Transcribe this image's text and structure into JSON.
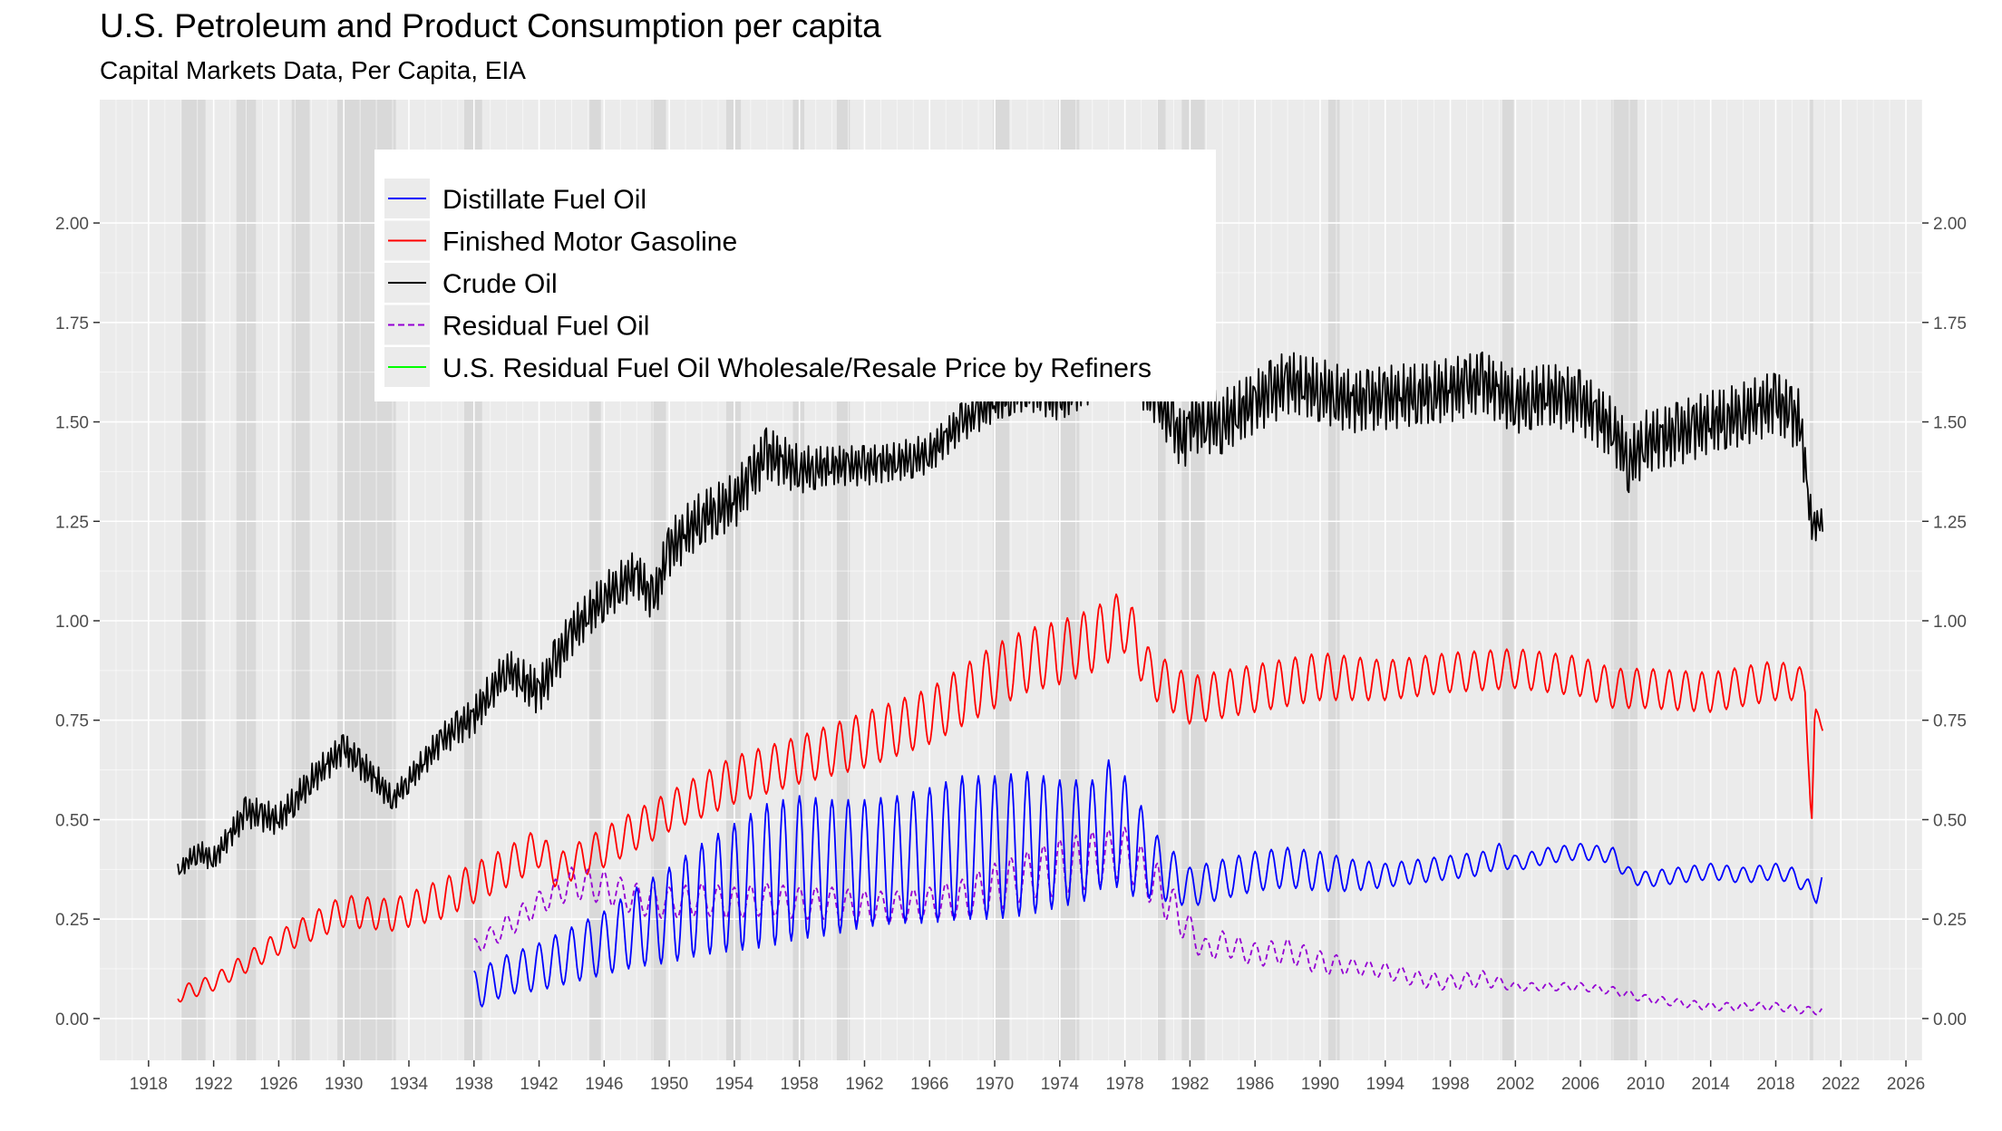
{
  "title": "U.S. Petroleum and Product Consumption per capita",
  "subtitle": "Capital Markets Data, Per Capita, EIA",
  "chart_data": {
    "type": "line",
    "title": "U.S. Petroleum and Product Consumption per capita",
    "subtitle": "Capital Markets Data, Per Capita, EIA",
    "xlabel": "",
    "ylabel": "",
    "xlim": [
      1915.0,
      2027.0
    ],
    "ylim": [
      -0.105,
      2.31
    ],
    "x_ticks": [
      1918,
      1922,
      1926,
      1930,
      1934,
      1938,
      1942,
      1946,
      1950,
      1954,
      1958,
      1962,
      1966,
      1970,
      1974,
      1978,
      1982,
      1986,
      1990,
      1994,
      1998,
      2002,
      2006,
      2010,
      2014,
      2018,
      2022,
      2026
    ],
    "y_ticks": [
      0.0,
      0.25,
      0.5,
      0.75,
      1.0,
      1.25,
      1.5,
      1.75,
      2.0
    ],
    "y_tick_labels": [
      "0.00",
      "0.25",
      "0.50",
      "0.75",
      "1.00",
      "1.25",
      "1.50",
      "1.75",
      "2.00"
    ],
    "y_axis_right": true,
    "grid": true,
    "legend_position": "top-left",
    "recessions": [
      [
        1920.0,
        1921.5
      ],
      [
        1923.4,
        1924.6
      ],
      [
        1926.8,
        1927.9
      ],
      [
        1929.6,
        1933.2
      ],
      [
        1937.4,
        1938.5
      ],
      [
        1945.1,
        1945.8
      ],
      [
        1948.9,
        1949.8
      ],
      [
        1953.5,
        1954.4
      ],
      [
        1957.6,
        1958.3
      ],
      [
        1960.3,
        1961.1
      ],
      [
        1969.9,
        1970.9
      ],
      [
        1973.9,
        1975.2
      ],
      [
        1980.0,
        1980.5
      ],
      [
        1981.5,
        1982.9
      ],
      [
        1990.5,
        1991.2
      ],
      [
        2001.2,
        2001.9
      ],
      [
        2007.9,
        2009.5
      ],
      [
        2020.1,
        2020.3
      ]
    ],
    "series": [
      {
        "name": "Distillate Fuel Oil",
        "color": "#0000ff",
        "dashed": false,
        "x": [
          1938,
          1940,
          1942,
          1944,
          1946,
          1948,
          1950,
          1952,
          1954,
          1956,
          1958,
          1960,
          1962,
          1964,
          1966,
          1968,
          1970,
          1972,
          1974,
          1976,
          1977,
          1978,
          1980,
          1982,
          1984,
          1986,
          1988,
          1990,
          1992,
          1994,
          1996,
          1998,
          2000,
          2001,
          2002,
          2004,
          2006,
          2008,
          2009,
          2010,
          2012,
          2014,
          2016,
          2018,
          2019,
          2020,
          2020.5,
          2020.9
        ],
        "y": [
          0.07,
          0.11,
          0.13,
          0.16,
          0.19,
          0.23,
          0.26,
          0.3,
          0.33,
          0.36,
          0.38,
          0.38,
          0.39,
          0.4,
          0.41,
          0.43,
          0.43,
          0.44,
          0.44,
          0.45,
          0.5,
          0.46,
          0.38,
          0.33,
          0.35,
          0.37,
          0.38,
          0.37,
          0.36,
          0.36,
          0.37,
          0.38,
          0.39,
          0.41,
          0.39,
          0.41,
          0.42,
          0.41,
          0.36,
          0.35,
          0.36,
          0.37,
          0.36,
          0.37,
          0.36,
          0.33,
          0.3,
          0.36
        ],
        "amplitude": [
          0.05,
          0.05,
          0.06,
          0.07,
          0.08,
          0.1,
          0.12,
          0.14,
          0.16,
          0.18,
          0.18,
          0.17,
          0.16,
          0.16,
          0.17,
          0.18,
          0.18,
          0.18,
          0.16,
          0.15,
          0.15,
          0.15,
          0.08,
          0.05,
          0.05,
          0.05,
          0.05,
          0.05,
          0.04,
          0.03,
          0.03,
          0.03,
          0.03,
          0.03,
          0.02,
          0.02,
          0.02,
          0.02,
          0.02,
          0.02,
          0.02,
          0.02,
          0.02,
          0.02,
          0.02,
          0.02,
          0.01,
          0.01
        ]
      },
      {
        "name": "Finished Motor Gasoline",
        "color": "#ff0000",
        "dashed": false,
        "x": [
          1919.8,
          1922,
          1926,
          1930,
          1933,
          1936,
          1940,
          1942,
          1943,
          1946,
          1950,
          1954,
          1958,
          1962,
          1966,
          1970,
          1972,
          1974,
          1976,
          1978,
          1979.5,
          1982,
          1986,
          1990,
          1994,
          1998,
          2002,
          2006,
          2008,
          2010,
          2014,
          2018,
          2019.8,
          2020.2,
          2020.4,
          2020.9
        ],
        "y": [
          0.06,
          0.09,
          0.19,
          0.27,
          0.26,
          0.3,
          0.38,
          0.43,
          0.37,
          0.43,
          0.52,
          0.6,
          0.65,
          0.7,
          0.76,
          0.86,
          0.9,
          0.92,
          0.95,
          1.0,
          0.87,
          0.8,
          0.83,
          0.86,
          0.85,
          0.87,
          0.88,
          0.86,
          0.83,
          0.83,
          0.82,
          0.85,
          0.84,
          0.48,
          0.76,
          0.74
        ],
        "amplitude": [
          0.02,
          0.02,
          0.03,
          0.04,
          0.04,
          0.05,
          0.05,
          0.05,
          0.04,
          0.05,
          0.05,
          0.06,
          0.06,
          0.07,
          0.07,
          0.08,
          0.08,
          0.08,
          0.08,
          0.08,
          0.06,
          0.06,
          0.06,
          0.06,
          0.05,
          0.05,
          0.05,
          0.05,
          0.05,
          0.05,
          0.05,
          0.05,
          0.04,
          0.0,
          0.02,
          0.02
        ]
      },
      {
        "name": "Crude Oil",
        "color": "#000000",
        "dashed": false,
        "x": [
          1919.8,
          1921,
          1922,
          1924,
          1926,
          1928,
          1930,
          1932,
          1933,
          1936,
          1938,
          1940,
          1942,
          1944,
          1946,
          1948,
          1949,
          1950,
          1952,
          1954,
          1956,
          1958,
          1960,
          1962,
          1964,
          1966,
          1968,
          1970,
          1972,
          1974,
          1976,
          1978,
          1980,
          1981.6,
          1982,
          1984,
          1986,
          1988,
          1990,
          1992,
          1994,
          1996,
          1998,
          2000,
          2002,
          2004,
          2006,
          2008,
          2009,
          2010,
          2012,
          2014,
          2016,
          2018,
          2019.5,
          2020.2,
          2020.9
        ],
        "y": [
          0.37,
          0.42,
          0.4,
          0.52,
          0.5,
          0.6,
          0.68,
          0.6,
          0.55,
          0.7,
          0.76,
          0.88,
          0.82,
          0.97,
          1.06,
          1.12,
          1.05,
          1.18,
          1.26,
          1.3,
          1.42,
          1.38,
          1.39,
          1.39,
          1.4,
          1.42,
          1.5,
          1.55,
          1.58,
          1.55,
          1.6,
          1.63,
          1.55,
          1.45,
          1.5,
          1.5,
          1.55,
          1.6,
          1.58,
          1.55,
          1.56,
          1.57,
          1.58,
          1.6,
          1.55,
          1.57,
          1.55,
          1.48,
          1.4,
          1.45,
          1.47,
          1.5,
          1.52,
          1.55,
          1.5,
          1.24,
          1.25
        ],
        "amplitude": [
          0.02,
          0.03,
          0.03,
          0.04,
          0.04,
          0.04,
          0.04,
          0.04,
          0.03,
          0.04,
          0.05,
          0.05,
          0.06,
          0.06,
          0.06,
          0.06,
          0.06,
          0.07,
          0.07,
          0.07,
          0.07,
          0.06,
          0.05,
          0.05,
          0.05,
          0.05,
          0.05,
          0.05,
          0.05,
          0.05,
          0.05,
          0.05,
          0.06,
          0.08,
          0.08,
          0.08,
          0.08,
          0.08,
          0.08,
          0.08,
          0.08,
          0.08,
          0.08,
          0.08,
          0.08,
          0.08,
          0.08,
          0.08,
          0.08,
          0.08,
          0.08,
          0.08,
          0.08,
          0.08,
          0.08,
          0.05,
          0.03
        ]
      },
      {
        "name": "Residual Fuel Oil",
        "color": "#9400d3",
        "dashed": true,
        "x": [
          1938,
          1940,
          1942,
          1944,
          1946,
          1948,
          1950,
          1952,
          1954,
          1956,
          1958,
          1960,
          1962,
          1964,
          1966,
          1968,
          1970,
          1972,
          1974,
          1976,
          1978,
          1980,
          1982,
          1983,
          1984,
          1986,
          1988,
          1990,
          1992,
          1994,
          1996,
          1998,
          2000,
          2002,
          2004,
          2006,
          2008,
          2010,
          2012,
          2014,
          2016,
          2018,
          2020,
          2020.9
        ],
        "y": [
          0.18,
          0.23,
          0.29,
          0.34,
          0.33,
          0.3,
          0.29,
          0.3,
          0.29,
          0.3,
          0.29,
          0.29,
          0.28,
          0.28,
          0.29,
          0.3,
          0.33,
          0.36,
          0.38,
          0.4,
          0.42,
          0.33,
          0.22,
          0.17,
          0.19,
          0.16,
          0.17,
          0.14,
          0.13,
          0.12,
          0.1,
          0.09,
          0.1,
          0.08,
          0.08,
          0.08,
          0.07,
          0.05,
          0.04,
          0.03,
          0.03,
          0.03,
          0.02,
          0.02
        ],
        "amplitude": [
          0.02,
          0.03,
          0.03,
          0.04,
          0.04,
          0.04,
          0.04,
          0.04,
          0.04,
          0.04,
          0.04,
          0.04,
          0.04,
          0.04,
          0.04,
          0.05,
          0.06,
          0.06,
          0.07,
          0.07,
          0.06,
          0.06,
          0.04,
          0.03,
          0.03,
          0.03,
          0.03,
          0.03,
          0.02,
          0.02,
          0.02,
          0.02,
          0.02,
          0.01,
          0.01,
          0.01,
          0.01,
          0.01,
          0.01,
          0.01,
          0.01,
          0.01,
          0.01,
          0.01
        ]
      },
      {
        "name": "U.S. Residual Fuel Oil Wholesale/Resale Price by Refiners",
        "color": "#00ff00",
        "dashed": false,
        "x": [],
        "y": [],
        "amplitude": []
      }
    ]
  }
}
